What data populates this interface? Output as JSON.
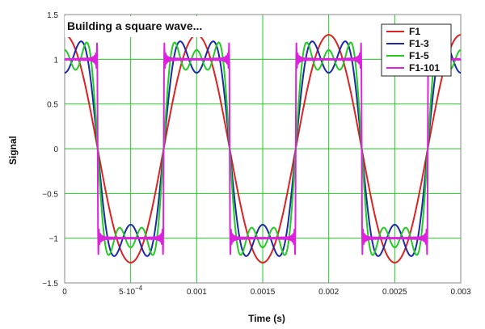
{
  "chart_data": {
    "type": "line",
    "title": "Building a square wave...",
    "xlabel": "Time (s)",
    "ylabel": "Signal",
    "xlim": [
      0,
      0.003
    ],
    "ylim": [
      -1.5,
      1.5
    ],
    "fundamental_frequency_hz": 1000,
    "square_wave_amplitude": 1,
    "x_ticks": [
      {
        "value": 0,
        "label": "0"
      },
      {
        "value": 0.0005,
        "label": "5·10",
        "exponent": "−4"
      },
      {
        "value": 0.001,
        "label": "0.001"
      },
      {
        "value": 0.0015,
        "label": "0.0015"
      },
      {
        "value": 0.002,
        "label": "0.002"
      },
      {
        "value": 0.0025,
        "label": "0.0025"
      },
      {
        "value": 0.003,
        "label": "0.003"
      }
    ],
    "y_ticks": [
      {
        "value": 1.5,
        "label": "1.5"
      },
      {
        "value": 1,
        "label": "1"
      },
      {
        "value": 0.5,
        "label": "0.5"
      },
      {
        "value": 0,
        "label": "0"
      },
      {
        "value": -0.5,
        "label": "−0.5"
      },
      {
        "value": -1,
        "label": "−1"
      },
      {
        "value": -1.5,
        "label": "−1.5"
      }
    ],
    "grid": true,
    "legend_position": "top-right",
    "series": [
      {
        "name": "F1",
        "color": "#dd2222",
        "max_harmonic": 1
      },
      {
        "name": "F1-3",
        "color": "#1c2aa8",
        "max_harmonic": 3
      },
      {
        "name": "F1-5",
        "color": "#22cc22",
        "max_harmonic": 5
      },
      {
        "name": "F1-101",
        "color": "#dd22dd",
        "max_harmonic": 101
      }
    ],
    "colors": {
      "grid": "#22cc22",
      "plot_border": "#888888"
    }
  }
}
